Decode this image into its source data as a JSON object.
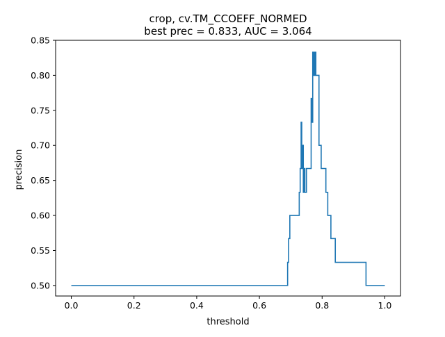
{
  "chart_data": {
    "type": "line",
    "title": "crop, cv.TM_CCOEFF_NORMED",
    "subtitle": "best prec = 0.833, AUC = 3.064",
    "xlabel": "threshold",
    "ylabel": "precision",
    "xlim": [
      -0.05,
      1.05
    ],
    "ylim": [
      0.485,
      0.85
    ],
    "xticks": [
      0.0,
      0.2,
      0.4,
      0.6,
      0.8,
      1.0
    ],
    "xtick_labels": [
      "0.0",
      "0.2",
      "0.4",
      "0.6",
      "0.8",
      "1.0"
    ],
    "yticks": [
      0.5,
      0.55,
      0.6,
      0.65,
      0.7,
      0.75,
      0.8,
      0.85
    ],
    "ytick_labels": [
      "0.50",
      "0.55",
      "0.60",
      "0.65",
      "0.70",
      "0.75",
      "0.80",
      "0.85"
    ],
    "grid": false,
    "line_color": "#1f77b4",
    "step": true,
    "series": [
      {
        "x": [
          0.0,
          0.69,
          0.693,
          0.697,
          0.7,
          0.727,
          0.73,
          0.733,
          0.735,
          0.737,
          0.74,
          0.742,
          0.745,
          0.75,
          0.765,
          0.768,
          0.77,
          0.772,
          0.774,
          0.776,
          0.778,
          0.78,
          0.785,
          0.79,
          0.797,
          0.812,
          0.818,
          0.828,
          0.842,
          0.94,
          1.0
        ],
        "y": [
          0.5,
          0.533,
          0.567,
          0.6,
          0.6,
          0.633,
          0.667,
          0.733,
          0.667,
          0.7,
          0.633,
          0.667,
          0.633,
          0.667,
          0.767,
          0.733,
          0.833,
          0.8,
          0.833,
          0.8,
          0.833,
          0.8,
          0.8,
          0.7,
          0.667,
          0.633,
          0.6,
          0.567,
          0.533,
          0.5,
          0.5
        ]
      }
    ]
  }
}
